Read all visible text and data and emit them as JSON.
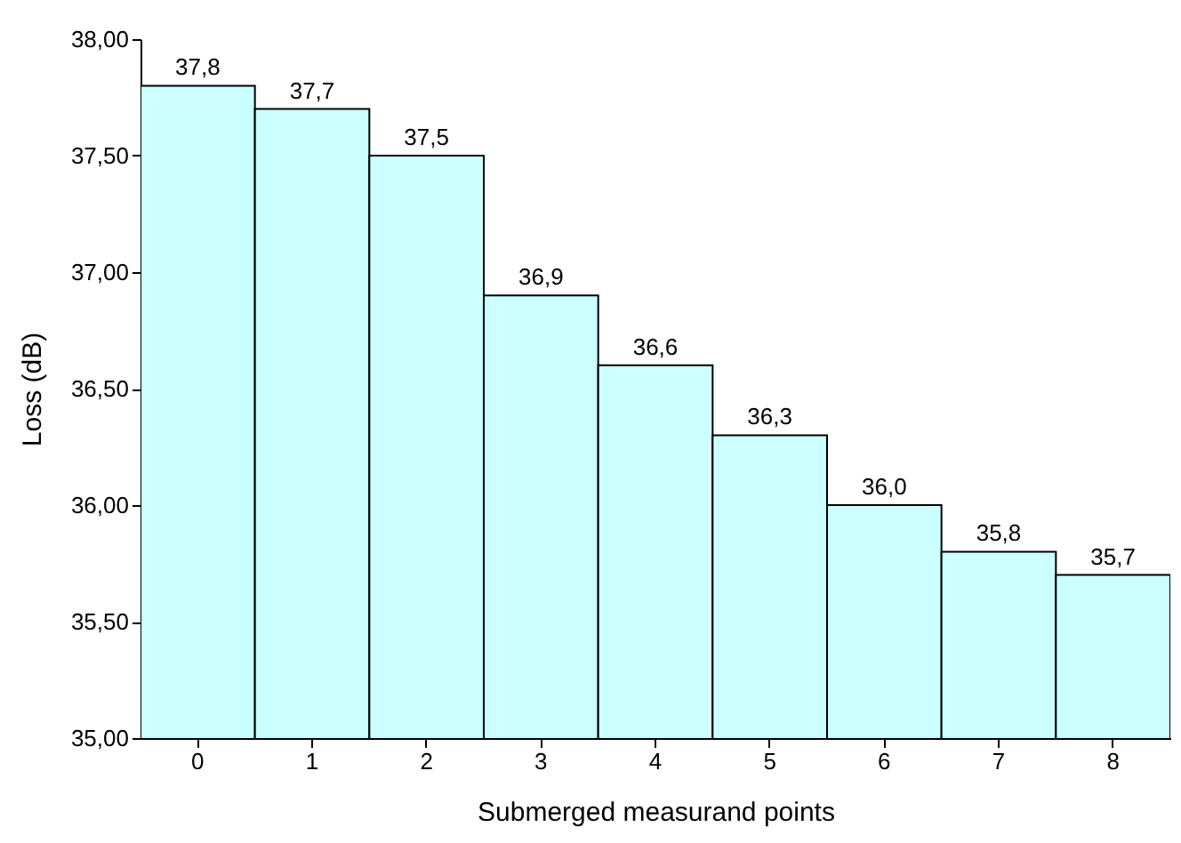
{
  "chart_data": {
    "type": "bar",
    "xlabel": "Submerged measurand points",
    "ylabel": "Loss (dB)",
    "categories": [
      "0",
      "1",
      "2",
      "3",
      "4",
      "5",
      "6",
      "7",
      "8"
    ],
    "values": [
      37.8,
      37.7,
      37.5,
      36.9,
      36.6,
      36.3,
      36.0,
      35.8,
      35.7
    ],
    "value_labels": [
      "37,8",
      "37,7",
      "37,5",
      "36,9",
      "36,6",
      "36,3",
      "36,0",
      "35,8",
      "35,7"
    ],
    "color": "#ccffff",
    "ylim": [
      35,
      38
    ],
    "yticks": [
      {
        "value": 35,
        "label": "35,00"
      },
      {
        "value": 35.5,
        "label": "35,50"
      },
      {
        "value": 36,
        "label": "36,00"
      },
      {
        "value": 36.5,
        "label": "36,50"
      },
      {
        "value": 37,
        "label": "37,00"
      },
      {
        "value": 37.5,
        "label": "37,50"
      },
      {
        "value": 38,
        "label": "38,00"
      }
    ],
    "grid": false
  }
}
